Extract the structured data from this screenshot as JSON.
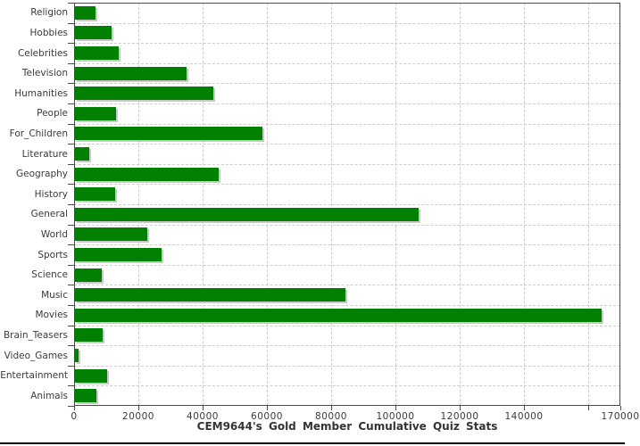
{
  "page": {
    "background": "#ffffff"
  },
  "chart_data": {
    "type": "bar",
    "orientation": "horizontal",
    "title": "CEM9644's Gold Member Cumulative Quiz Stats",
    "categories": [
      "Religion",
      "Hobbies",
      "Celebrities",
      "Television",
      "Humanities",
      "People",
      "For_Children",
      "Literature",
      "Geography",
      "History",
      "General",
      "World",
      "Sports",
      "Science",
      "Music",
      "Movies",
      "Brain_Teasers",
      "Video_Games",
      "Entertainment",
      "Animals"
    ],
    "values": [
      6500,
      11400,
      13500,
      34600,
      43100,
      12800,
      58400,
      4400,
      44700,
      12600,
      107000,
      22500,
      26900,
      8400,
      84300,
      164000,
      8700,
      1100,
      10000,
      6800
    ],
    "xlabel": "",
    "ylabel": "",
    "xlim": [
      0,
      170000
    ],
    "x_ticks": [
      {
        "value": 0,
        "label": "0"
      },
      {
        "value": 20000,
        "label": "20000"
      },
      {
        "value": 40000,
        "label": "40000"
      },
      {
        "value": 60000,
        "label": "60000"
      },
      {
        "value": 80000,
        "label": "80000"
      },
      {
        "value": 100000,
        "label": "100000"
      },
      {
        "value": 120000,
        "label": "120000"
      },
      {
        "value": 140000,
        "label": "140000"
      },
      {
        "value": 160000,
        "label": ""
      },
      {
        "value": 170000,
        "label": "170000"
      }
    ],
    "grid": "dashed",
    "legend": "none",
    "colors": {
      "bar": "#008000",
      "bar_shadow": "#c9c9c9",
      "gridline": "#cccccc",
      "axis": "#4a4a4a",
      "label": "#3a3a3a",
      "title": "#333333"
    }
  }
}
